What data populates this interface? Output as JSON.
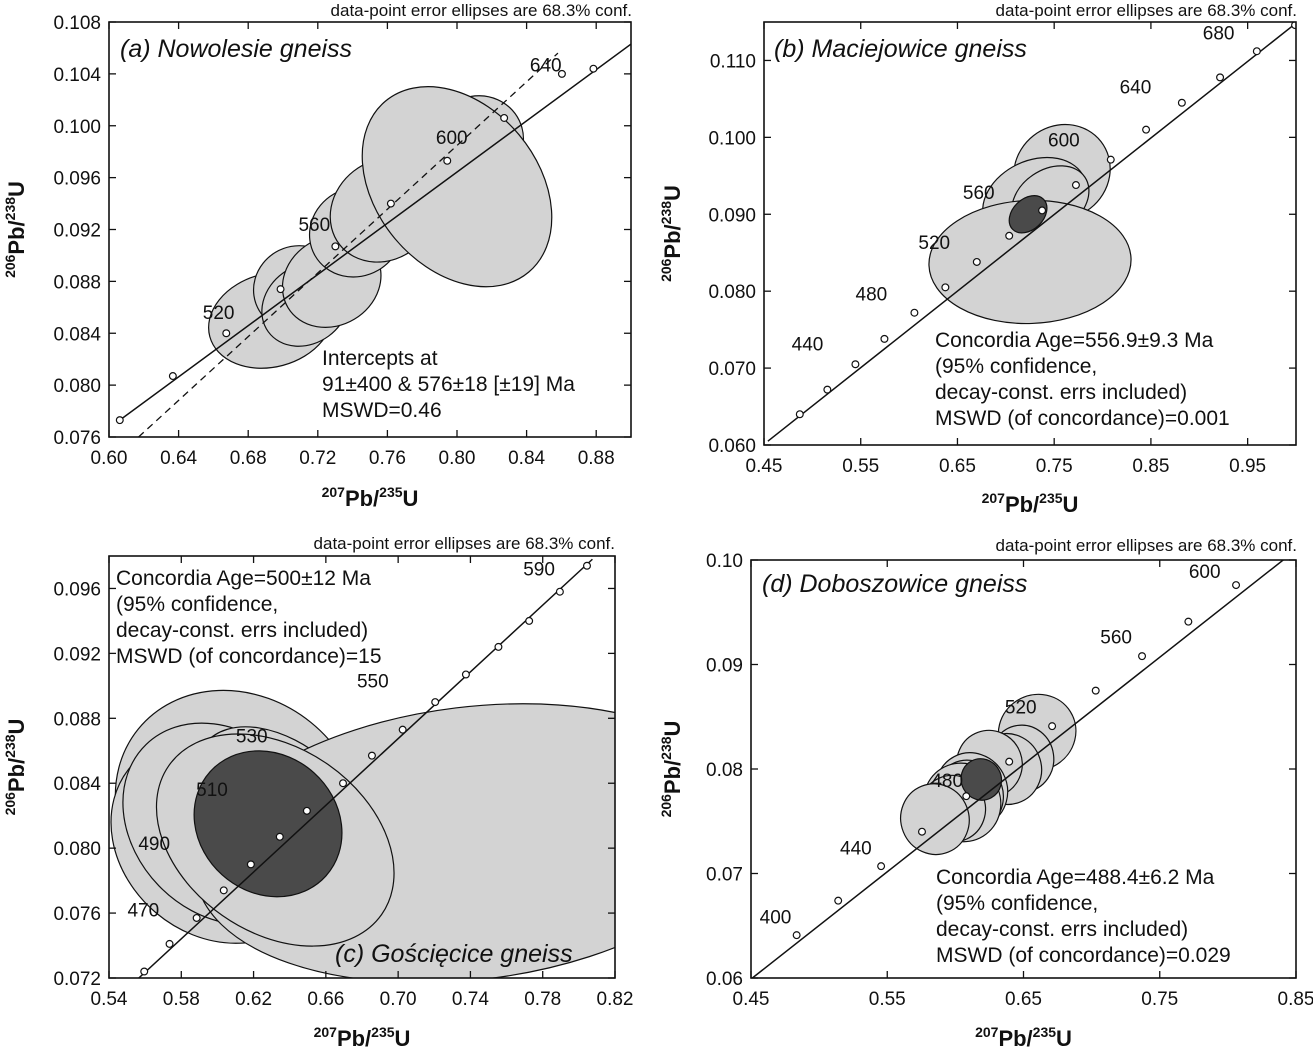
{
  "figure": {
    "colors": {
      "ellipse_fill": "#d3d3d3",
      "ellipse_dark": "#4a4a4a",
      "stroke": "#111111",
      "background": "#ffffff"
    }
  },
  "chart_data": [
    {
      "id": "a",
      "type": "scatter",
      "subtype": "concordia-diagram",
      "title": "(a) Nowolesie gneiss",
      "caption": "data-point error ellipses are 68.3% conf.",
      "xlabel": {
        "sup1": "207",
        "base1": "Pb/",
        "sup2": "235",
        "base2": "U"
      },
      "ylabel": {
        "sup1": "206",
        "base1": "Pb/",
        "sup2": "238",
        "base2": "U"
      },
      "xlim": [
        0.6,
        0.9
      ],
      "ylim": [
        0.076,
        0.108
      ],
      "xticks": [
        "0.60",
        "0.64",
        "0.68",
        "0.72",
        "0.76",
        "0.80",
        "0.84",
        "0.88"
      ],
      "yticks": [
        "0.076",
        "0.080",
        "0.084",
        "0.088",
        "0.092",
        "0.096",
        "0.100",
        "0.104",
        "0.108"
      ],
      "concordia_points": [
        [
          0.6062,
          0.0773
        ],
        [
          0.6367,
          0.0807
        ],
        [
          0.6674,
          0.084
        ],
        [
          0.6986,
          0.0874
        ],
        [
          0.7301,
          0.0907
        ],
        [
          0.762,
          0.094
        ],
        [
          0.7944,
          0.0973
        ],
        [
          0.8271,
          0.1006
        ],
        [
          0.8603,
          0.104
        ],
        [
          0.8784,
          0.1044
        ]
      ],
      "concordia_line": [
        [
          0.6062,
          0.0773
        ],
        [
          0.9,
          0.1063
        ]
      ],
      "discordia_line": [
        [
          0.617,
          0.076
        ],
        [
          0.858,
          0.1056
        ]
      ],
      "age_labels": [
        {
          "text": "520",
          "x": 0.663,
          "y": 0.0851
        },
        {
          "text": "560",
          "x": 0.718,
          "y": 0.0919
        },
        {
          "text": "600",
          "x": 0.797,
          "y": 0.0986
        },
        {
          "text": "640",
          "x": 0.851,
          "y": 0.1042
        }
      ],
      "ellipses": [
        {
          "cx": 0.693,
          "cy": 0.085,
          "rx": 0.0363,
          "ry": 0.0018,
          "angle_deg": -15.0,
          "dark": false
        },
        {
          "cx": 0.708,
          "cy": 0.0875,
          "rx": 0.0253,
          "ry": 0.0016,
          "angle_deg": -31.0,
          "dark": false
        },
        {
          "cx": 0.713,
          "cy": 0.0862,
          "rx": 0.0265,
          "ry": 0.0015,
          "angle_deg": -36.0,
          "dark": false
        },
        {
          "cx": 0.728,
          "cy": 0.088,
          "rx": 0.0293,
          "ry": 0.0017,
          "angle_deg": -31.0,
          "dark": false
        },
        {
          "cx": 0.742,
          "cy": 0.0918,
          "rx": 0.0272,
          "ry": 0.0017,
          "angle_deg": -30.0,
          "dark": false
        },
        {
          "cx": 0.758,
          "cy": 0.0935,
          "rx": 0.0323,
          "ry": 0.0019,
          "angle_deg": -38.0,
          "dark": false
        },
        {
          "cx": 0.812,
          "cy": 0.0989,
          "rx": 0.0263,
          "ry": 0.0017,
          "angle_deg": -20.0,
          "dark": false
        },
        {
          "cx": 0.8,
          "cy": 0.0953,
          "rx": 0.0465,
          "ry": 0.0043,
          "angle_deg": -40.0,
          "dark": false
        }
      ],
      "annotations": [
        "Intercepts at",
        "91±400 & 576±18 [±19] Ma",
        "MSWD=0.46"
      ]
    },
    {
      "id": "b",
      "type": "scatter",
      "subtype": "concordia-diagram",
      "title": "(b) Maciejowice gneiss",
      "caption": "data-point error ellipses are 68.3% conf.",
      "xlabel": {
        "sup1": "207",
        "base1": "Pb/",
        "sup2": "235",
        "base2": "U"
      },
      "ylabel": {
        "sup1": "206",
        "base1": "Pb/",
        "sup2": "238",
        "base2": "U"
      },
      "xlim": [
        0.45,
        1.0
      ],
      "ylim": [
        0.06,
        0.115
      ],
      "xticks": [
        "0.45",
        "0.55",
        "0.65",
        "0.75",
        "0.85",
        "0.95"
      ],
      "yticks": [
        "0.060",
        "0.070",
        "0.080",
        "0.090",
        "0.100",
        "0.110"
      ],
      "concordia_points": [
        [
          0.487,
          0.064
        ],
        [
          0.5155,
          0.0672
        ],
        [
          0.5445,
          0.0705
        ],
        [
          0.5745,
          0.0738
        ],
        [
          0.6055,
          0.0772
        ],
        [
          0.6375,
          0.0805
        ],
        [
          0.67,
          0.0838
        ],
        [
          0.7035,
          0.0872
        ],
        [
          0.7375,
          0.0905
        ],
        [
          0.7725,
          0.0938
        ],
        [
          0.8085,
          0.0971
        ],
        [
          0.845,
          0.101
        ],
        [
          0.882,
          0.1045
        ],
        [
          0.9215,
          0.1078
        ],
        [
          0.9595,
          0.1112
        ],
        [
          0.999,
          0.1146
        ]
      ],
      "concordia_line": [
        [
          0.454,
          0.0605
        ],
        [
          0.9995,
          0.1148
        ]
      ],
      "age_labels": [
        {
          "text": "440",
          "x": 0.495,
          "y": 0.0723
        },
        {
          "text": "480",
          "x": 0.561,
          "y": 0.0788
        },
        {
          "text": "520",
          "x": 0.626,
          "y": 0.0855
        },
        {
          "text": "560",
          "x": 0.672,
          "y": 0.092
        },
        {
          "text": "600",
          "x": 0.76,
          "y": 0.0988
        },
        {
          "text": "640",
          "x": 0.834,
          "y": 0.1057
        },
        {
          "text": "680",
          "x": 0.92,
          "y": 0.1127
        }
      ],
      "ellipses": [
        {
          "cx": 0.758,
          "cy": 0.0955,
          "rx": 0.0512,
          "ry": 0.003,
          "angle_deg": -38.0,
          "dark": false
        },
        {
          "cx": 0.717,
          "cy": 0.0893,
          "rx": 0.0433,
          "ry": 0.0019,
          "angle_deg": -39.0,
          "dark": false
        },
        {
          "cx": 0.72,
          "cy": 0.09,
          "rx": 0.0413,
          "ry": 0.0021,
          "angle_deg": -30.0,
          "dark": false
        },
        {
          "cx": 0.715,
          "cy": 0.087,
          "rx": 0.0477,
          "ry": 0.0023,
          "angle_deg": -16.0,
          "dark": false
        },
        {
          "cx": 0.73,
          "cy": 0.0918,
          "rx": 0.0563,
          "ry": 0.0026,
          "angle_deg": -25.0,
          "dark": false
        },
        {
          "cx": 0.746,
          "cy": 0.0918,
          "rx": 0.0431,
          "ry": 0.002,
          "angle_deg": -34.0,
          "dark": false
        },
        {
          "cx": 0.725,
          "cy": 0.0838,
          "rx": 0.1045,
          "ry": 0.004,
          "angle_deg": -2.0,
          "dark": false
        },
        {
          "cx": 0.723,
          "cy": 0.09,
          "rx": 0.0223,
          "ry": 0.001,
          "angle_deg": -44.0,
          "dark": true
        }
      ],
      "annotations": [
        "Concordia Age=556.9±9.3 Ma",
        "(95% confidence,",
        "decay-const. errs included)",
        "MSWD (of concordance)=0.001"
      ]
    },
    {
      "id": "c",
      "type": "scatter",
      "subtype": "concordia-diagram",
      "title": "(c) Gościęcice gneiss",
      "caption": "data-point error ellipses are 68.3% conf.",
      "xlabel": {
        "sup1": "207",
        "base1": "Pb/",
        "sup2": "235",
        "base2": "U"
      },
      "ylabel": {
        "sup1": "206",
        "base1": "Pb/",
        "sup2": "238",
        "base2": "U"
      },
      "xlim": [
        0.54,
        0.82
      ],
      "ylim": [
        0.072,
        0.098
      ],
      "xticks": [
        "0.54",
        "0.58",
        "0.62",
        "0.66",
        "0.70",
        "0.74",
        "0.78",
        "0.82"
      ],
      "yticks": [
        "0.072",
        "0.076",
        "0.080",
        "0.084",
        "0.088",
        "0.092",
        "0.096"
      ],
      "concordia_points": [
        [
          0.5595,
          0.0724
        ],
        [
          0.5735,
          0.0741
        ],
        [
          0.5885,
          0.0757
        ],
        [
          0.6035,
          0.0774
        ],
        [
          0.6185,
          0.079
        ],
        [
          0.6345,
          0.0807
        ],
        [
          0.6495,
          0.0823
        ],
        [
          0.6695,
          0.084
        ],
        [
          0.6855,
          0.0857
        ],
        [
          0.7025,
          0.0873
        ],
        [
          0.7205,
          0.089
        ],
        [
          0.7375,
          0.0907
        ],
        [
          0.7555,
          0.0924
        ],
        [
          0.7725,
          0.094
        ],
        [
          0.7895,
          0.0958
        ],
        [
          0.8045,
          0.0974
        ]
      ],
      "concordia_line": [
        [
          0.5565,
          0.072
        ],
        [
          0.8075,
          0.0978
        ]
      ],
      "age_labels": [
        {
          "text": "470",
          "x": 0.559,
          "y": 0.0758
        },
        {
          "text": "490",
          "x": 0.565,
          "y": 0.0799
        },
        {
          "text": "510",
          "x": 0.597,
          "y": 0.0832
        },
        {
          "text": "530",
          "x": 0.619,
          "y": 0.0865
        },
        {
          "text": "550",
          "x": 0.686,
          "y": 0.0899
        },
        {
          "text": "590",
          "x": 0.778,
          "y": 0.0968
        }
      ],
      "ellipses": [
        {
          "cx": 0.612,
          "cy": 0.0823,
          "rx": 0.063,
          "ry": 0.004,
          "angle_deg": -51.0,
          "dark": false
        },
        {
          "cx": 0.6,
          "cy": 0.0805,
          "rx": 0.0527,
          "ry": 0.0035,
          "angle_deg": -50.0,
          "dark": false
        },
        {
          "cx": 0.603,
          "cy": 0.0815,
          "rx": 0.0493,
          "ry": 0.0034,
          "angle_deg": -44.0,
          "dark": false
        },
        {
          "cx": 0.637,
          "cy": 0.0823,
          "rx": 0.036,
          "ry": 0.0032,
          "angle_deg": -49.0,
          "dark": false
        },
        {
          "cx": 0.741,
          "cy": 0.0803,
          "rx": 0.154,
          "ry": 0.0042,
          "angle_deg": -7.0,
          "dark": false
        },
        {
          "cx": 0.632,
          "cy": 0.0805,
          "rx": 0.051,
          "ry": 0.004,
          "angle_deg": -55.0,
          "dark": false
        },
        {
          "cx": 0.628,
          "cy": 0.0815,
          "rx": 0.038,
          "ry": 0.0024,
          "angle_deg": -48.0,
          "dark": true
        }
      ],
      "annotations": [
        "Concordia Age=500±12 Ma",
        "(95% confidence,",
        "decay-const. errs included)",
        "MSWD (of concordance)=15"
      ]
    },
    {
      "id": "d",
      "type": "scatter",
      "subtype": "concordia-diagram",
      "title": "(d) Doboszowice gneiss",
      "caption": "data-point error ellipses are 68.3% conf.",
      "xlabel": {
        "sup1": "207",
        "base1": "Pb/",
        "sup2": "235",
        "base2": "U"
      },
      "ylabel": {
        "sup1": "206",
        "base1": "Pb/",
        "sup2": "238",
        "base2": "U"
      },
      "xlim": [
        0.45,
        0.85
      ],
      "ylim": [
        0.06,
        0.1
      ],
      "xticks": [
        "0.45",
        "0.55",
        "0.65",
        "0.75",
        "0.85"
      ],
      "yticks": [
        "0.06",
        "0.07",
        "0.08",
        "0.09",
        "0.10"
      ],
      "concordia_points": [
        [
          0.4835,
          0.0641
        ],
        [
          0.514,
          0.0674
        ],
        [
          0.5455,
          0.0707
        ],
        [
          0.5755,
          0.074
        ],
        [
          0.608,
          0.0774
        ],
        [
          0.6395,
          0.0807
        ],
        [
          0.671,
          0.0841
        ],
        [
          0.703,
          0.0875
        ],
        [
          0.737,
          0.0908
        ],
        [
          0.771,
          0.0941
        ],
        [
          0.806,
          0.0976
        ]
      ],
      "concordia_line": [
        [
          0.451,
          0.06
        ],
        [
          0.8445,
          0.1004
        ]
      ],
      "age_labels": [
        {
          "text": "400",
          "x": 0.468,
          "y": 0.0652
        },
        {
          "text": "440",
          "x": 0.527,
          "y": 0.0718
        },
        {
          "text": "480",
          "x": 0.594,
          "y": 0.0783
        },
        {
          "text": "520",
          "x": 0.648,
          "y": 0.0853
        },
        {
          "text": "560",
          "x": 0.718,
          "y": 0.092
        },
        {
          "text": "600",
          "x": 0.783,
          "y": 0.0983
        }
      ],
      "ellipses": [
        {
          "cx": 0.66,
          "cy": 0.0835,
          "rx": 0.0288,
          "ry": 0.0018,
          "angle_deg": -32.0,
          "dark": false
        },
        {
          "cx": 0.649,
          "cy": 0.081,
          "rx": 0.0232,
          "ry": 0.0016,
          "angle_deg": -8.0,
          "dark": false
        },
        {
          "cx": 0.638,
          "cy": 0.08,
          "rx": 0.0252,
          "ry": 0.0017,
          "angle_deg": -18.0,
          "dark": false
        },
        {
          "cx": 0.625,
          "cy": 0.0805,
          "rx": 0.024,
          "ry": 0.0016,
          "angle_deg": -20.0,
          "dark": false
        },
        {
          "cx": 0.612,
          "cy": 0.078,
          "rx": 0.026,
          "ry": 0.0018,
          "angle_deg": -28.0,
          "dark": false
        },
        {
          "cx": 0.61,
          "cy": 0.0775,
          "rx": 0.0248,
          "ry": 0.0017,
          "angle_deg": -35.0,
          "dark": false
        },
        {
          "cx": 0.605,
          "cy": 0.0768,
          "rx": 0.028,
          "ry": 0.0019,
          "angle_deg": -32.0,
          "dark": false
        },
        {
          "cx": 0.598,
          "cy": 0.0762,
          "rx": 0.024,
          "ry": 0.0016,
          "angle_deg": -25.0,
          "dark": false
        },
        {
          "cx": 0.585,
          "cy": 0.0752,
          "rx": 0.025,
          "ry": 0.0017,
          "angle_deg": -22.0,
          "dark": false
        },
        {
          "cx": 0.619,
          "cy": 0.079,
          "rx": 0.0147,
          "ry": 0.001,
          "angle_deg": -28.0,
          "dark": true
        }
      ],
      "annotations": [
        "Concordia Age=488.4±6.2 Ma",
        "(95% confidence,",
        "decay-const. errs included)",
        "MSWD (of concordance)=0.029"
      ]
    }
  ]
}
